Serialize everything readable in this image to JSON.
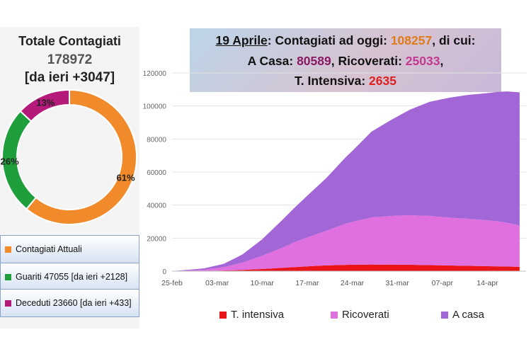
{
  "totals": {
    "title": "Totale Contagiati",
    "number": "178972",
    "delta": "[da ieri +3047]"
  },
  "donut": {
    "slices": [
      {
        "name": "Contagiati Attuali",
        "pct": 61,
        "label": "61%",
        "color": "#f08a2a"
      },
      {
        "name": "Guariti",
        "pct": 26,
        "label": "26%",
        "color": "#1f9e3c"
      },
      {
        "name": "Deceduti",
        "pct": 13,
        "label": "13%",
        "color": "#b5197a"
      }
    ]
  },
  "legend_boxes": [
    {
      "text": "Contagiati Attuali",
      "color": "#f08a2a"
    },
    {
      "text": "Guariti 47055 [da ieri +2128]",
      "color": "#1f9e3c"
    },
    {
      "text": "Deceduti 23660 [da ieri +433]",
      "color": "#b5197a"
    }
  ],
  "banner": {
    "date": "19 Aprile",
    "l1_text": ": Contagiati ad oggi: ",
    "l1_value": "108257",
    "l1_tail": ", di cui:",
    "casa_label": "A Casa: ",
    "casa_value": "80589",
    "ricov_label": ", Ricoverati: ",
    "ricov_value": "25033",
    "ricov_tail": ",",
    "ti_label": "T. Intensiva: ",
    "ti_value": "2635"
  },
  "chart_data": {
    "type": "area",
    "x_ticks": [
      "25-feb",
      "03-mar",
      "10-mar",
      "17-mar",
      "24-mar",
      "31-mar",
      "07-apr",
      "14-apr"
    ],
    "ylim": [
      0,
      120000
    ],
    "y_ticks": [
      "0",
      "20000",
      "40000",
      "60000",
      "80000",
      "100000",
      "120000"
    ],
    "days": 55,
    "series": [
      {
        "name": "T. intensiva",
        "color": "#e8141a",
        "values": [
          [
            0,
            0
          ],
          [
            5,
            100
          ],
          [
            10,
            600
          ],
          [
            14,
            1300
          ],
          [
            17,
            2000
          ],
          [
            20,
            2700
          ],
          [
            24,
            3500
          ],
          [
            28,
            3900
          ],
          [
            31,
            4000
          ],
          [
            36,
            3900
          ],
          [
            41,
            3600
          ],
          [
            46,
            3200
          ],
          [
            51,
            2900
          ],
          [
            54,
            2635
          ]
        ]
      },
      {
        "name": "Ricoverati",
        "color": "#e070e0",
        "values": [
          [
            0,
            0
          ],
          [
            5,
            800
          ],
          [
            8,
            2000
          ],
          [
            11,
            4500
          ],
          [
            14,
            8000
          ],
          [
            17,
            12000
          ],
          [
            19,
            15000
          ],
          [
            21,
            17500
          ],
          [
            24,
            21000
          ],
          [
            27,
            25000
          ],
          [
            31,
            28500
          ],
          [
            34,
            29500
          ],
          [
            37,
            30000
          ],
          [
            40,
            29800
          ],
          [
            43,
            29000
          ],
          [
            46,
            28500
          ],
          [
            50,
            27500
          ],
          [
            52,
            26500
          ],
          [
            54,
            25033
          ]
        ]
      },
      {
        "name": "A casa",
        "color": "#a266d6",
        "values": [
          [
            0,
            0
          ],
          [
            5,
            800
          ],
          [
            8,
            2000
          ],
          [
            11,
            5000
          ],
          [
            14,
            10000
          ],
          [
            17,
            16500
          ],
          [
            20,
            23000
          ],
          [
            24,
            32000
          ],
          [
            28,
            43000
          ],
          [
            31,
            52000
          ],
          [
            34,
            58000
          ],
          [
            37,
            64000
          ],
          [
            40,
            69000
          ],
          [
            43,
            72500
          ],
          [
            46,
            75000
          ],
          [
            49,
            77000
          ],
          [
            52,
            79500
          ],
          [
            54,
            80589
          ]
        ]
      }
    ]
  }
}
